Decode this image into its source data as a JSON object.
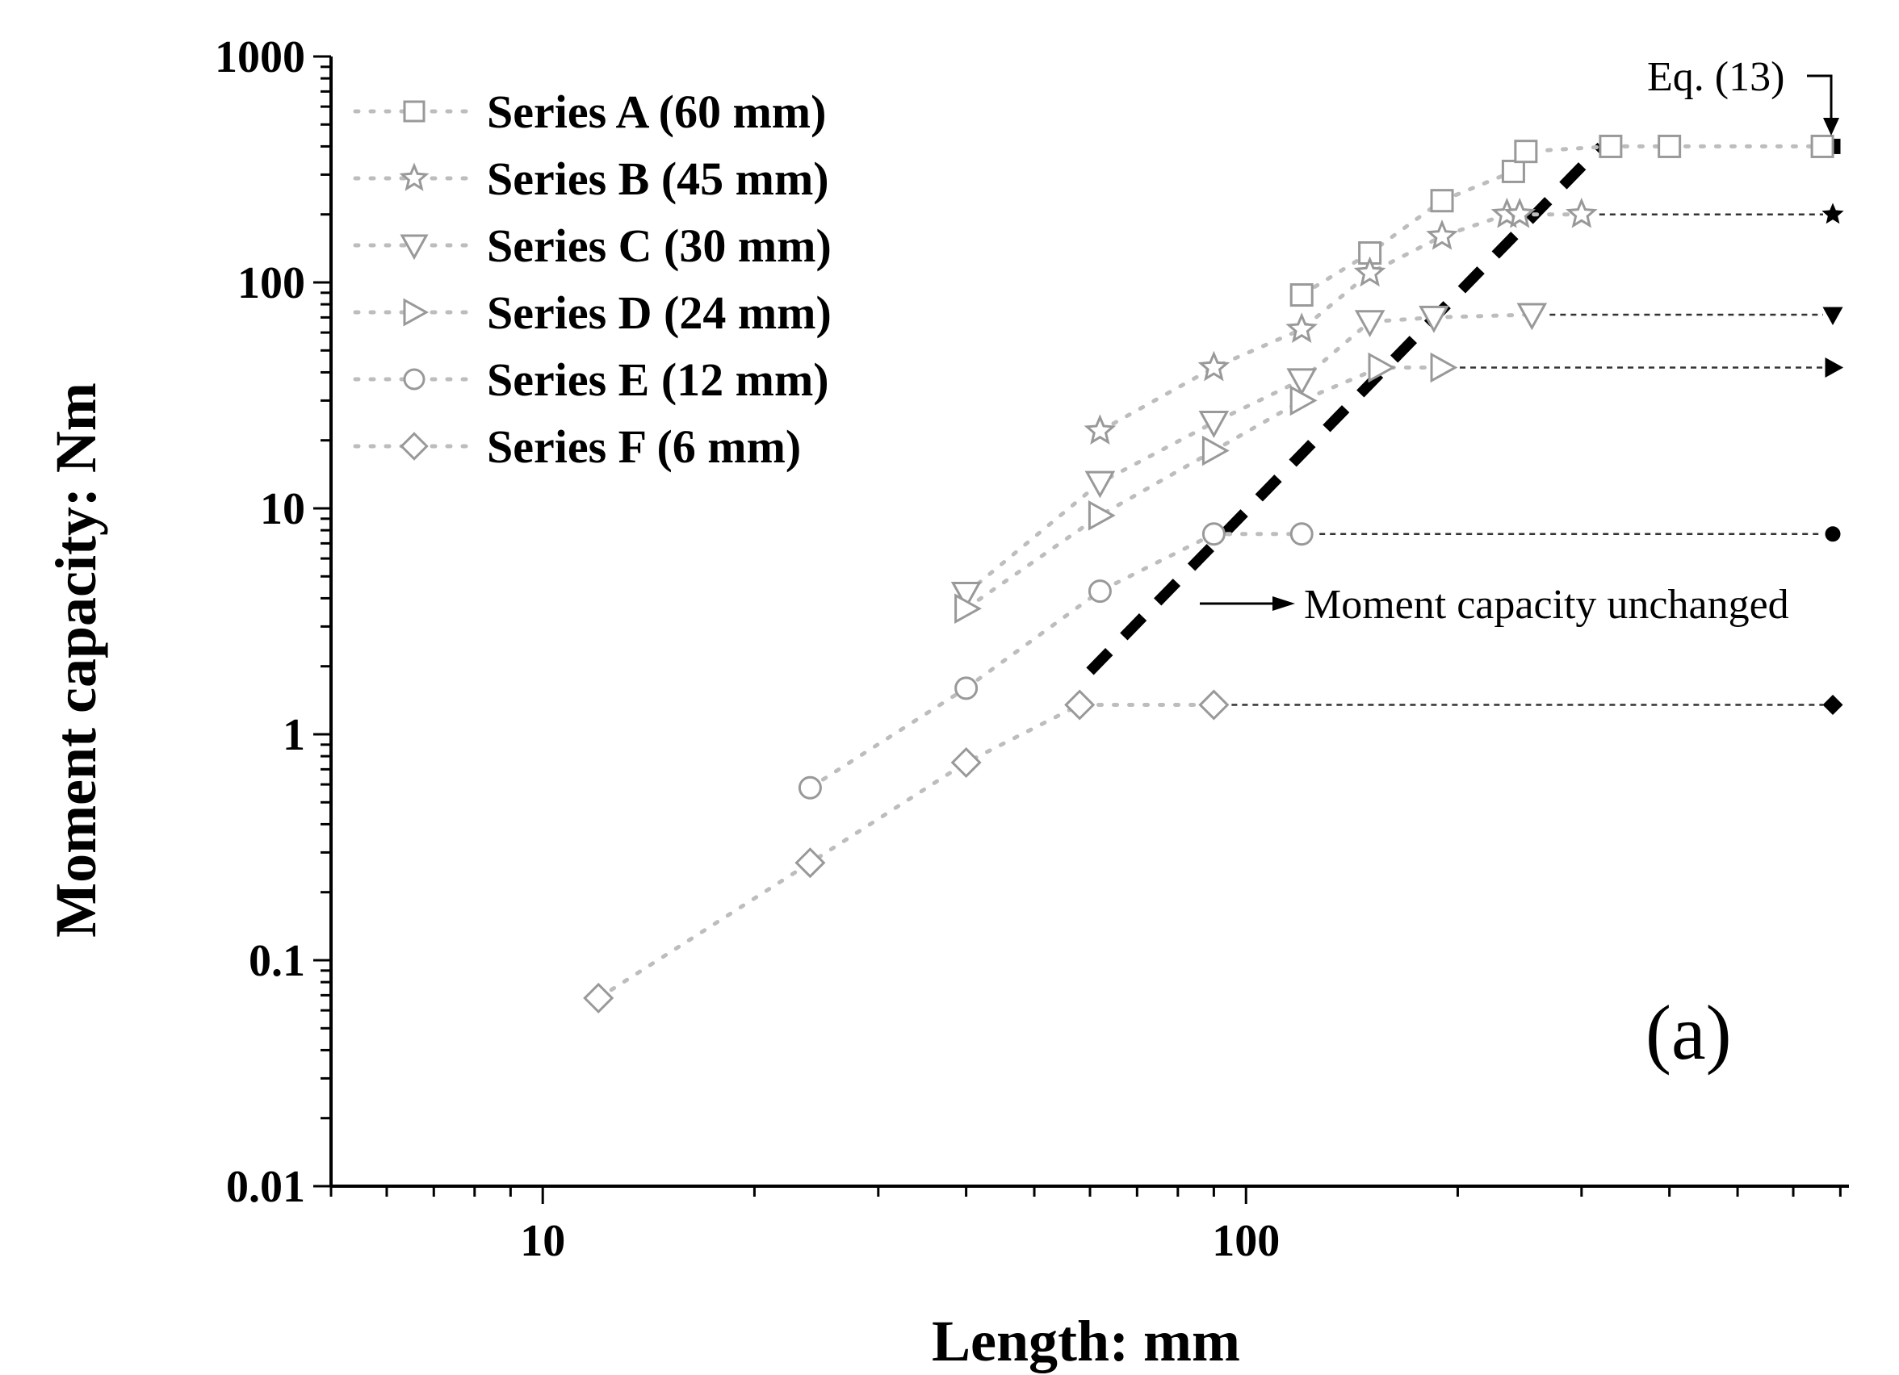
{
  "chart_data": {
    "type": "scatter",
    "xscale": "log",
    "yscale": "log",
    "xlim": [
      5,
      720
    ],
    "ylim": [
      0.01,
      1000
    ],
    "xlabel": "Length: mm",
    "ylabel": "Moment capacity: Nm",
    "xticks": [
      {
        "value": 10,
        "label": "10"
      },
      {
        "value": 100,
        "label": "100"
      }
    ],
    "yticks": [
      {
        "value": 0.01,
        "label": "0.01"
      },
      {
        "value": 0.1,
        "label": "0.1"
      },
      {
        "value": 1,
        "label": "1"
      },
      {
        "value": 10,
        "label": "10"
      },
      {
        "value": 100,
        "label": "100"
      },
      {
        "value": 1000,
        "label": "1000"
      }
    ],
    "legend_position": "top-left",
    "panel_label": "(a)",
    "colors": {
      "series": "#999999",
      "limit": "#000000",
      "axis": "#000000"
    },
    "series": [
      {
        "name": "Series A (60 mm)",
        "marker": "square",
        "x": [
          120,
          150,
          190,
          240,
          250,
          330,
          400,
          660
        ],
        "y": [
          88,
          135,
          230,
          310,
          380,
          400,
          400,
          400
        ],
        "limit": 400,
        "limit_from": 660
      },
      {
        "name": "Series B (45 mm)",
        "marker": "star",
        "x": [
          62,
          90,
          120,
          150,
          190,
          235,
          245,
          300
        ],
        "y": [
          22,
          42,
          62,
          110,
          160,
          200,
          200,
          200
        ],
        "limit": 200,
        "limit_from": 300
      },
      {
        "name": "Series C (30 mm)",
        "marker": "triangle-down",
        "x": [
          40,
          62,
          90,
          120,
          150,
          185,
          255
        ],
        "y": [
          4.2,
          13,
          24,
          37,
          67,
          70,
          72
        ],
        "limit": 72,
        "limit_from": 255
      },
      {
        "name": "Series D (24 mm)",
        "marker": "triangle-right",
        "x": [
          40,
          62,
          90,
          120,
          155,
          190
        ],
        "y": [
          3.6,
          9.3,
          18,
          30,
          42,
          42
        ],
        "limit": 42,
        "limit_from": 190
      },
      {
        "name": "Series E (12 mm)",
        "marker": "circle",
        "x": [
          24,
          40,
          62,
          90,
          120
        ],
        "y": [
          0.58,
          1.6,
          4.3,
          7.7,
          7.7
        ],
        "limit": 7.7,
        "limit_from": 120
      },
      {
        "name": "Series F (6 mm)",
        "marker": "diamond",
        "x": [
          12,
          24,
          40,
          58,
          90
        ],
        "y": [
          0.068,
          0.27,
          0.75,
          1.35,
          1.35
        ],
        "limit": 1.35,
        "limit_from": 90
      }
    ],
    "threshold_line": {
      "x": [
        60,
        320
      ],
      "y": [
        1.9,
        400
      ]
    },
    "annotations": [
      {
        "text": "Eq. (13)"
      },
      {
        "text": "Moment capacity unchanged"
      }
    ]
  }
}
